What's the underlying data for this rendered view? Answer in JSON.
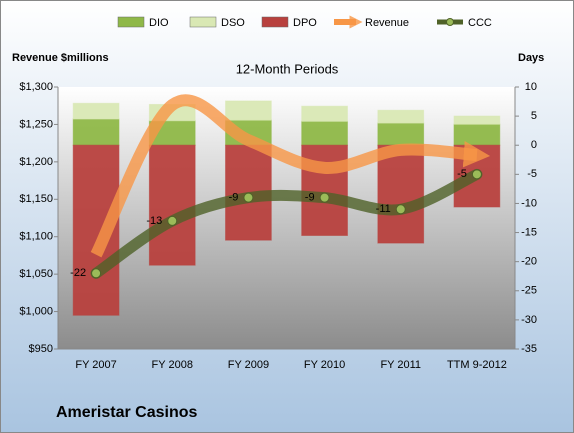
{
  "chart_data": {
    "type": "combo",
    "title": "12-Month Periods",
    "y_axis_title": "Revenue $millions",
    "y2_axis_title": "Days",
    "footer": "Ameristar Casinos",
    "categories": [
      "FY 2007",
      "FY 2008",
      "FY 2009",
      "FY 2010",
      "FY 2011",
      "TTM 9-2012"
    ],
    "ylim": [
      950,
      1300
    ],
    "yticks": [
      {
        "value": 950,
        "label": "$950"
      },
      {
        "value": 1000,
        "label": "$1,000"
      },
      {
        "value": 1050,
        "label": "$1,050"
      },
      {
        "value": 1100,
        "label": "$1,100"
      },
      {
        "value": 1150,
        "label": "$1,150"
      },
      {
        "value": 1200,
        "label": "$1,200"
      },
      {
        "value": 1250,
        "label": "$1,250"
      },
      {
        "value": 1300,
        "label": "$1,300"
      }
    ],
    "y2lim": [
      -35,
      10
    ],
    "y2ticks": [
      -35,
      -30,
      -25,
      -20,
      -15,
      -10,
      -5,
      0,
      5,
      10
    ],
    "series": [
      {
        "name": "DIO",
        "type": "bar",
        "axis": "y2",
        "color": "#8fb848",
        "values": [
          4.5,
          4.2,
          4.3,
          4.1,
          3.8,
          3.6
        ]
      },
      {
        "name": "DSO",
        "type": "bar",
        "axis": "y2",
        "color": "#d9e8b4",
        "values": [
          2.7,
          2.8,
          3.3,
          2.6,
          2.2,
          1.4
        ]
      },
      {
        "name": "DPO",
        "type": "bar",
        "axis": "y2",
        "color": "#b8413e",
        "values": [
          -29.2,
          -20.6,
          -16.3,
          -15.5,
          -16.8,
          -10.6
        ]
      },
      {
        "name": "Revenue",
        "type": "line",
        "axis": "y",
        "color": "#f79646",
        "values": [
          1076,
          1276,
          1229,
          1192,
          1216,
          1209
        ]
      },
      {
        "name": "CCC",
        "type": "line",
        "axis": "y2",
        "color": "#4f6228",
        "values": [
          -22,
          -13,
          -9,
          -9,
          -11,
          -5
        ]
      }
    ]
  }
}
